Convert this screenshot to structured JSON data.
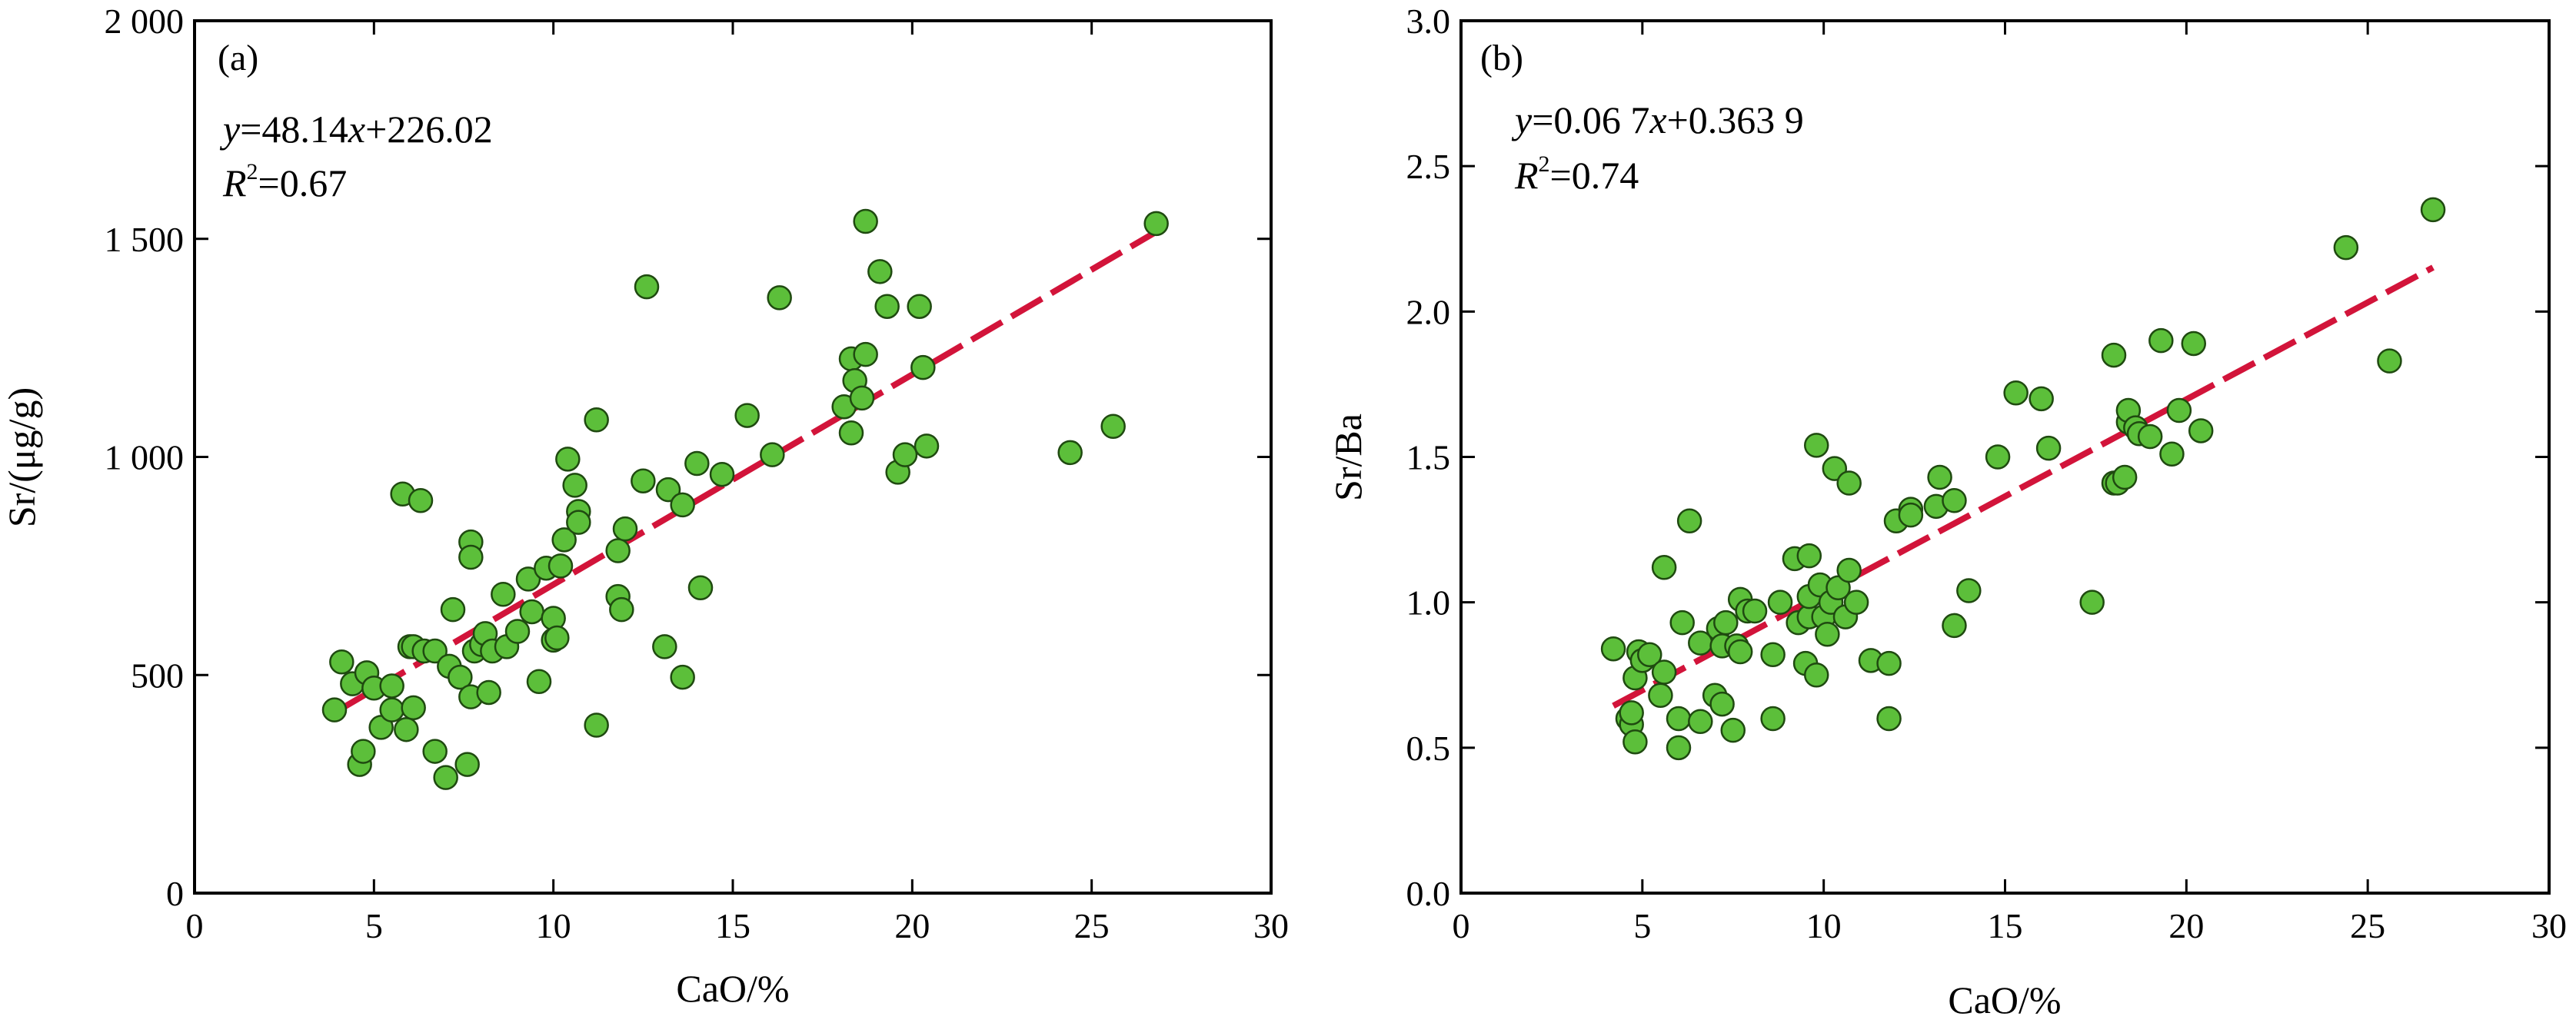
{
  "chart_data": [
    {
      "type": "scatter",
      "panel_label": "(a)",
      "equation": {
        "y": "y",
        "rest": "=48.14",
        "x": "x",
        "tail": "+226.02"
      },
      "r2": {
        "r": "R",
        "sup": "2",
        "value": "=0.67"
      },
      "xlabel": "CaO/%",
      "ylabel": "Sr/(μg/g)",
      "xlim": [
        0,
        30
      ],
      "ylim": [
        0,
        2000
      ],
      "xticks": [
        0,
        5,
        10,
        15,
        20,
        25,
        30
      ],
      "yticks": [
        0,
        500,
        1000,
        1500,
        2000
      ],
      "ytick_labels": [
        "0",
        "500",
        "1 000",
        "1 500",
        "2 000"
      ],
      "xtick_labels": [
        "0",
        "5",
        "10",
        "15",
        "20",
        "25",
        "30"
      ],
      "fit_line": {
        "slope": 48.14,
        "intercept": 226.02,
        "x_range": [
          3.9,
          26.9
        ]
      },
      "colors": {
        "points": "#5cbf3a",
        "fit": "#d2143a"
      },
      "x": [
        3.9,
        4.1,
        4.4,
        4.6,
        4.7,
        4.8,
        5.0,
        5.2,
        5.5,
        5.5,
        5.8,
        5.9,
        6.0,
        6.1,
        6.1,
        6.3,
        6.4,
        6.7,
        6.7,
        7.0,
        7.1,
        7.2,
        7.4,
        7.6,
        7.7,
        7.7,
        7.7,
        7.8,
        8.0,
        8.1,
        8.2,
        8.3,
        8.6,
        8.7,
        9.0,
        9.3,
        9.4,
        9.6,
        9.8,
        10.0,
        10.0,
        10.1,
        10.2,
        10.3,
        10.4,
        10.6,
        10.7,
        10.7,
        11.2,
        11.2,
        11.8,
        11.8,
        11.9,
        12.0,
        12.5,
        12.6,
        13.1,
        13.2,
        13.6,
        13.6,
        14.0,
        14.1,
        14.7,
        15.4,
        16.1,
        16.3,
        18.1,
        18.3,
        18.3,
        18.4,
        18.6,
        18.7,
        18.7,
        19.1,
        19.3,
        19.6,
        19.8,
        20.2,
        20.3,
        20.4,
        24.4,
        25.6,
        26.8
      ],
      "y": [
        420,
        530,
        480,
        295,
        325,
        505,
        470,
        380,
        420,
        475,
        915,
        375,
        565,
        425,
        565,
        900,
        555,
        325,
        555,
        265,
        520,
        650,
        495,
        295,
        805,
        450,
        770,
        555,
        570,
        595,
        460,
        555,
        685,
        565,
        600,
        720,
        645,
        485,
        745,
        580,
        630,
        585,
        750,
        810,
        995,
        935,
        875,
        850,
        1085,
        385,
        785,
        680,
        650,
        835,
        945,
        1390,
        565,
        925,
        495,
        890,
        985,
        700,
        960,
        1095,
        1005,
        1365,
        1115,
        1225,
        1055,
        1175,
        1135,
        1540,
        1235,
        1425,
        1345,
        965,
        1005,
        1345,
        1205,
        1025,
        1010,
        1070,
        1535
      ]
    },
    {
      "type": "scatter",
      "panel_label": "(b)",
      "equation": {
        "y": "y",
        "rest": "=0.06 7",
        "x": "x",
        "tail": "+0.363 9"
      },
      "r2": {
        "r": "R",
        "sup": "2",
        "value": "=0.74"
      },
      "xlabel": "CaO/%",
      "ylabel": "Sr/Ba",
      "xlim": [
        0,
        30
      ],
      "ylim": [
        0,
        3.0
      ],
      "xticks": [
        0,
        5,
        10,
        15,
        20,
        25,
        30
      ],
      "yticks": [
        0,
        0.5,
        1.0,
        1.5,
        2.0,
        2.5,
        3.0
      ],
      "ytick_labels": [
        "0.0",
        "0.5",
        "1.0",
        "1.5",
        "2.0",
        "2.5",
        "3.0"
      ],
      "xtick_labels": [
        "0",
        "5",
        "10",
        "15",
        "20",
        "25",
        "30"
      ],
      "fit_line": {
        "slope": 0.0667,
        "intercept": 0.3639,
        "x_range": [
          4.2,
          26.8
        ]
      },
      "colors": {
        "points": "#5cbf3a",
        "fit": "#d2143a"
      },
      "x": [
        4.2,
        4.6,
        4.7,
        4.7,
        4.8,
        4.8,
        4.9,
        5.0,
        5.2,
        5.5,
        5.6,
        5.6,
        6.0,
        6.0,
        6.1,
        6.3,
        6.6,
        6.6,
        7.0,
        7.1,
        7.2,
        7.2,
        7.3,
        7.5,
        7.6,
        7.7,
        7.7,
        7.9,
        8.1,
        8.6,
        8.6,
        8.8,
        9.2,
        9.3,
        9.5,
        9.6,
        9.6,
        9.6,
        9.8,
        9.8,
        9.9,
        10.0,
        10.1,
        10.2,
        10.3,
        10.4,
        10.6,
        10.7,
        10.7,
        10.9,
        11.3,
        11.8,
        11.8,
        12.0,
        12.4,
        12.4,
        13.1,
        13.2,
        13.6,
        13.6,
        14.0,
        14.8,
        15.3,
        16.0,
        16.2,
        17.4,
        18.0,
        18.0,
        18.1,
        18.3,
        18.4,
        18.4,
        18.6,
        18.7,
        19.0,
        19.3,
        19.6,
        19.8,
        20.2,
        20.4,
        24.4,
        25.6,
        26.8
      ],
      "y": [
        0.84,
        0.6,
        0.58,
        0.62,
        0.52,
        0.74,
        0.83,
        0.8,
        0.82,
        0.68,
        0.76,
        1.12,
        0.5,
        0.6,
        0.93,
        1.28,
        0.59,
        0.86,
        0.68,
        0.91,
        0.85,
        0.65,
        0.93,
        0.56,
        0.85,
        1.01,
        0.83,
        0.97,
        0.97,
        0.6,
        0.82,
        1.0,
        1.15,
        0.93,
        0.79,
        0.95,
        1.16,
        1.02,
        0.75,
        1.54,
        1.06,
        0.95,
        0.89,
        1.0,
        1.46,
        1.05,
        0.95,
        1.41,
        1.11,
        1.0,
        0.8,
        0.6,
        0.79,
        1.28,
        1.32,
        1.3,
        1.33,
        1.43,
        0.92,
        1.35,
        1.04,
        1.5,
        1.72,
        1.7,
        1.53,
        1.0,
        1.85,
        1.41,
        1.41,
        1.43,
        1.62,
        1.66,
        1.6,
        1.58,
        1.57,
        1.9,
        1.51,
        1.66,
        1.89,
        1.59,
        2.22,
        1.83,
        2.35
      ]
    }
  ]
}
